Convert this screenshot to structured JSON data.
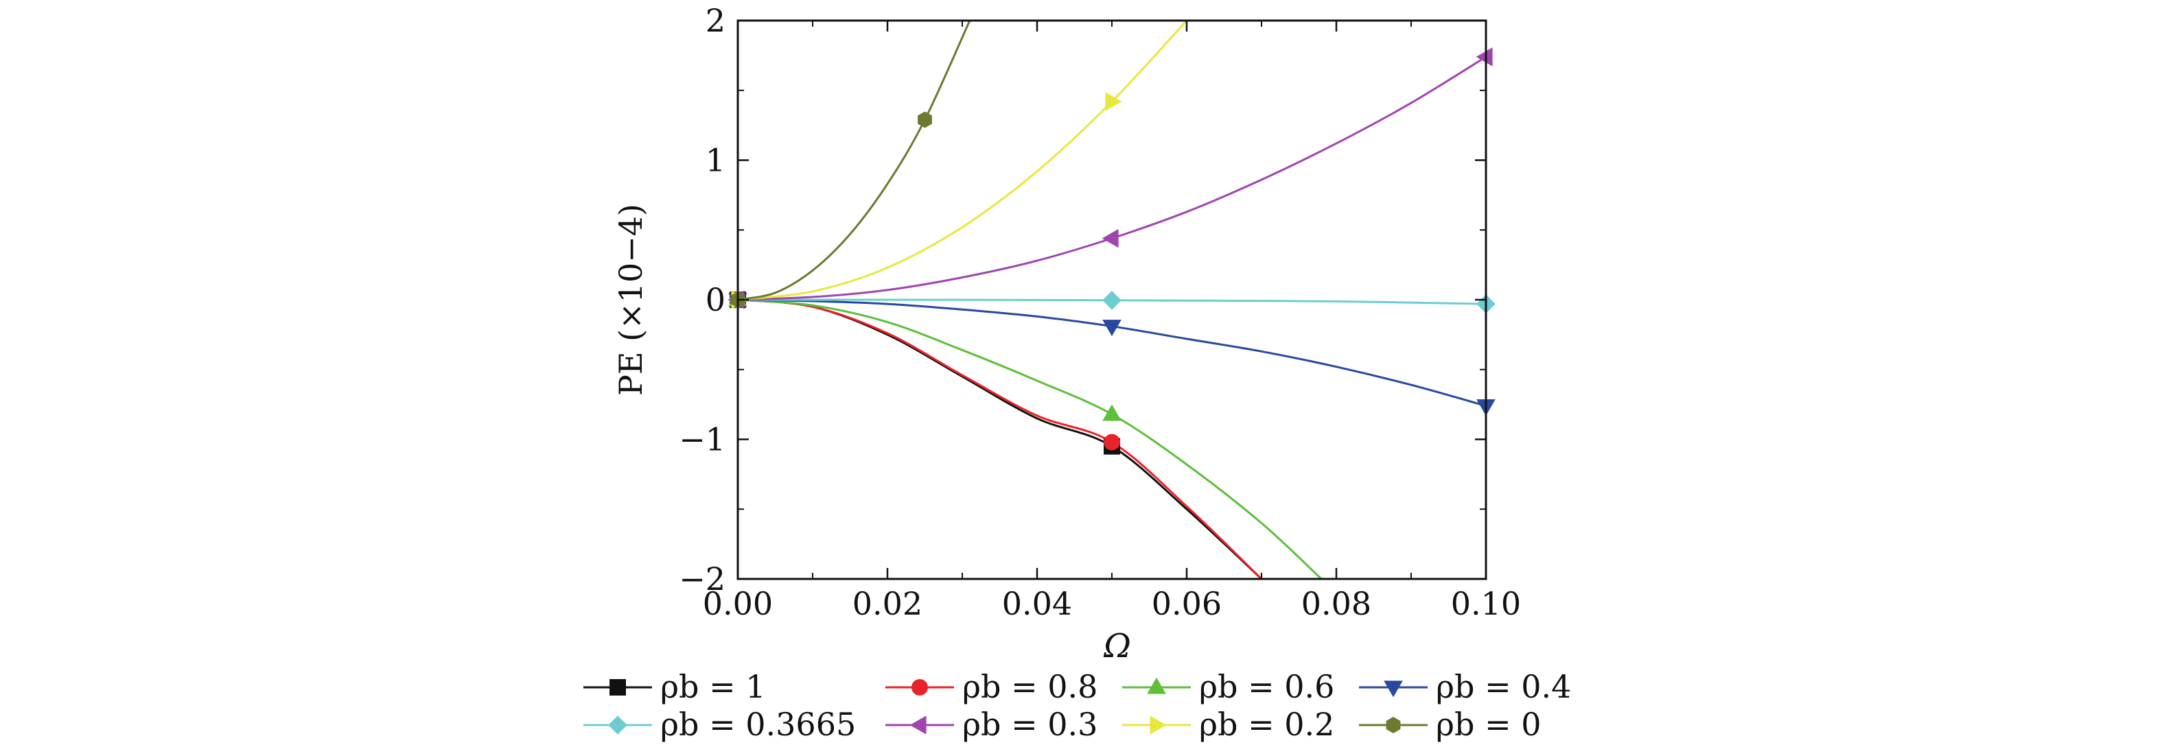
{
  "chart_data": {
    "type": "line",
    "xlabel": "Ω",
    "ylabel": "PE (×10−4)",
    "xlim": [
      0,
      0.1
    ],
    "ylim": [
      -2,
      2
    ],
    "xticks": [
      0.0,
      0.02,
      0.04,
      0.06,
      0.08,
      0.1
    ],
    "xtick_labels": [
      "0.00",
      "0.02",
      "0.04",
      "0.06",
      "0.08",
      "0.10"
    ],
    "yticks": [
      -2,
      -1,
      0,
      1,
      2
    ],
    "ytick_labels": [
      "−2",
      "−1",
      "0",
      "1",
      "2"
    ],
    "grid": false,
    "legend_position": "bottom",
    "series": [
      {
        "name": "ρb = 1",
        "color": "#111111",
        "marker": "square",
        "x": [
          0,
          0.01,
          0.02,
          0.03,
          0.04,
          0.05,
          0.06,
          0.07
        ],
        "y": [
          0,
          -0.05,
          -0.25,
          -0.55,
          -0.85,
          -1.05,
          -1.5,
          -2.0
        ],
        "marker_x": [
          0,
          0.05
        ]
      },
      {
        "name": "ρb = 0.8",
        "color": "#e8242b",
        "marker": "circle",
        "x": [
          0,
          0.01,
          0.02,
          0.03,
          0.04,
          0.05,
          0.06,
          0.07
        ],
        "y": [
          0,
          -0.05,
          -0.24,
          -0.54,
          -0.83,
          -1.02,
          -1.48,
          -2.0
        ],
        "marker_x": [
          0,
          0.05
        ]
      },
      {
        "name": "ρb = 0.6",
        "color": "#5dbf3a",
        "marker": "triangle-up",
        "x": [
          0,
          0.01,
          0.02,
          0.03,
          0.04,
          0.05,
          0.06,
          0.07,
          0.078
        ],
        "y": [
          0,
          -0.04,
          -0.16,
          -0.36,
          -0.58,
          -0.82,
          -1.18,
          -1.6,
          -2.0
        ],
        "marker_x": [
          0,
          0.05
        ]
      },
      {
        "name": "ρb = 0.4",
        "color": "#2848a0",
        "marker": "triangle-down",
        "x": [
          0,
          0.01,
          0.02,
          0.03,
          0.04,
          0.05,
          0.06,
          0.07,
          0.08,
          0.09,
          0.1
        ],
        "y": [
          0,
          -0.01,
          -0.03,
          -0.07,
          -0.12,
          -0.19,
          -0.28,
          -0.37,
          -0.48,
          -0.61,
          -0.76
        ],
        "marker_x": [
          0,
          0.05,
          0.1
        ]
      },
      {
        "name": "ρb = 0.3665",
        "color": "#6ccdd0",
        "marker": "diamond",
        "x": [
          0,
          0.02,
          0.04,
          0.05,
          0.06,
          0.08,
          0.1
        ],
        "y": [
          0,
          0,
          -0.002,
          -0.004,
          -0.006,
          -0.012,
          -0.03
        ],
        "marker_x": [
          0,
          0.05,
          0.1
        ]
      },
      {
        "name": "ρb = 0.3",
        "color": "#a044b0",
        "marker": "triangle-left",
        "x": [
          0,
          0.01,
          0.02,
          0.03,
          0.04,
          0.05,
          0.06,
          0.07,
          0.08,
          0.09,
          0.1
        ],
        "y": [
          0,
          0.02,
          0.07,
          0.16,
          0.28,
          0.44,
          0.63,
          0.86,
          1.12,
          1.41,
          1.74
        ],
        "marker_x": [
          0,
          0.05,
          0.1
        ]
      },
      {
        "name": "ρb = 0.2",
        "color": "#e8e83c",
        "marker": "triangle-right",
        "x": [
          0,
          0.01,
          0.02,
          0.03,
          0.04,
          0.05,
          0.06
        ],
        "y": [
          0,
          0.06,
          0.23,
          0.52,
          0.92,
          1.42,
          2.0
        ],
        "marker_x": [
          0,
          0.05
        ]
      },
      {
        "name": "ρb = 0",
        "color": "#6b7a2e",
        "marker": "hexagon",
        "x": [
          0,
          0.005,
          0.01,
          0.015,
          0.02,
          0.025,
          0.031
        ],
        "y": [
          0,
          0.05,
          0.21,
          0.47,
          0.83,
          1.29,
          2.0
        ],
        "marker_x": [
          0,
          0.025
        ]
      }
    ]
  }
}
